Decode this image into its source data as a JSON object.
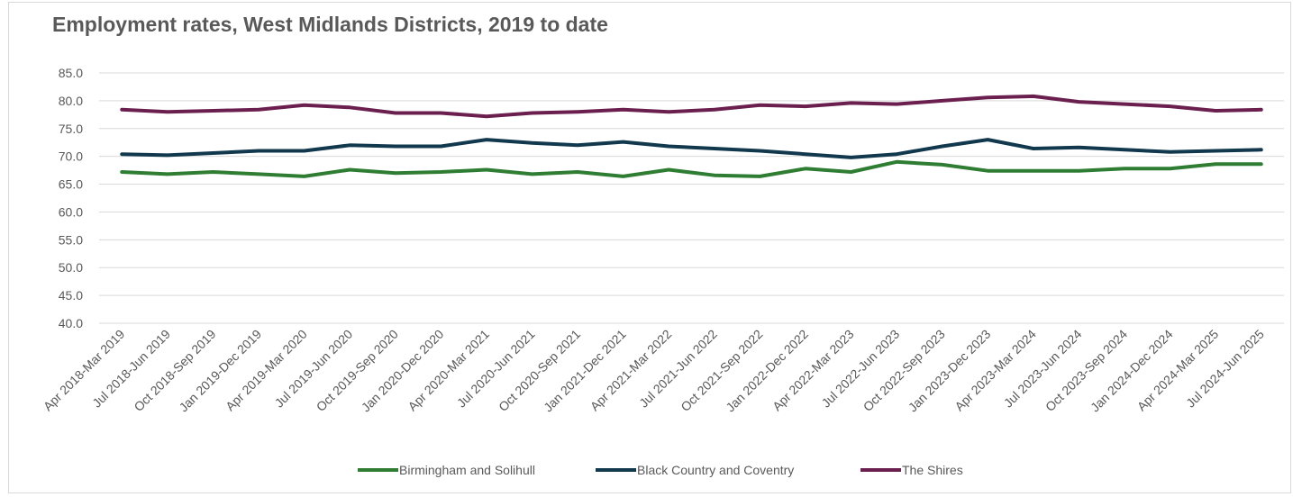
{
  "chart_data": {
    "type": "line",
    "title": "Employment rates, West Midlands Districts, 2019 to date",
    "xlabel": "",
    "ylabel": "",
    "ylim": [
      40,
      85
    ],
    "yticks": [
      "85.0",
      "80.0",
      "75.0",
      "70.0",
      "65.0",
      "60.0",
      "55.0",
      "50.0",
      "45.0",
      "40.0"
    ],
    "grid": true,
    "legend_position": "bottom",
    "categories": [
      "Apr 2018-Mar 2019",
      "Jul 2018-Jun 2019",
      "Oct 2018-Sep 2019",
      "Jan 2019-Dec 2019",
      "Apr 2019-Mar 2020",
      "Jul 2019-Jun 2020",
      "Oct 2019-Sep 2020",
      "Jan 2020-Dec 2020",
      "Apr 2020-Mar 2021",
      "Jul 2020-Jun 2021",
      "Oct 2020-Sep 2021",
      "Jan 2021-Dec 2021",
      "Apr 2021-Mar 2022",
      "Jul 2021-Jun 2022",
      "Oct 2021-Sep 2022",
      "Jan 2022-Dec 2022",
      "Apr 2022-Mar 2023",
      "Jul 2022-Jun 2023",
      "Oct 2022-Sep 2023",
      "Jan 2023-Dec 2023",
      "Apr 2023-Mar 2024",
      "Jul 2023-Jun 2024",
      "Oct 2023-Sep 2024",
      "Jan 2024-Dec 2024",
      "Apr 2024-Mar 2025",
      "Jul 2024-Jun 2025"
    ],
    "series": [
      {
        "name": "Birmingham and Solihull",
        "color": "#2e7d32",
        "values": [
          67.2,
          66.8,
          67.2,
          66.8,
          66.4,
          67.6,
          67.0,
          67.2,
          67.6,
          66.8,
          67.2,
          66.4,
          67.6,
          66.6,
          66.4,
          67.8,
          67.2,
          69.0,
          68.5,
          67.4,
          67.4,
          67.4,
          67.8,
          67.8,
          68.6,
          68.6
        ]
      },
      {
        "name": "Black Country and Coventry",
        "color": "#12384e",
        "values": [
          70.4,
          70.2,
          70.6,
          71.0,
          71.0,
          72.0,
          71.8,
          71.8,
          73.0,
          72.4,
          72.0,
          72.6,
          71.8,
          71.4,
          71.0,
          70.4,
          69.8,
          70.4,
          71.8,
          73.0,
          71.4,
          71.6,
          71.2,
          70.8,
          71.0,
          71.2
        ]
      },
      {
        "name": "The Shires",
        "color": "#6b1f4f",
        "values": [
          78.4,
          78.0,
          78.2,
          78.4,
          79.2,
          78.8,
          77.8,
          77.8,
          77.2,
          77.8,
          78.0,
          78.4,
          78.0,
          78.4,
          79.2,
          79.0,
          79.6,
          79.4,
          80.0,
          80.6,
          80.8,
          79.8,
          79.4,
          79.0,
          78.2,
          78.4
        ]
      }
    ]
  }
}
